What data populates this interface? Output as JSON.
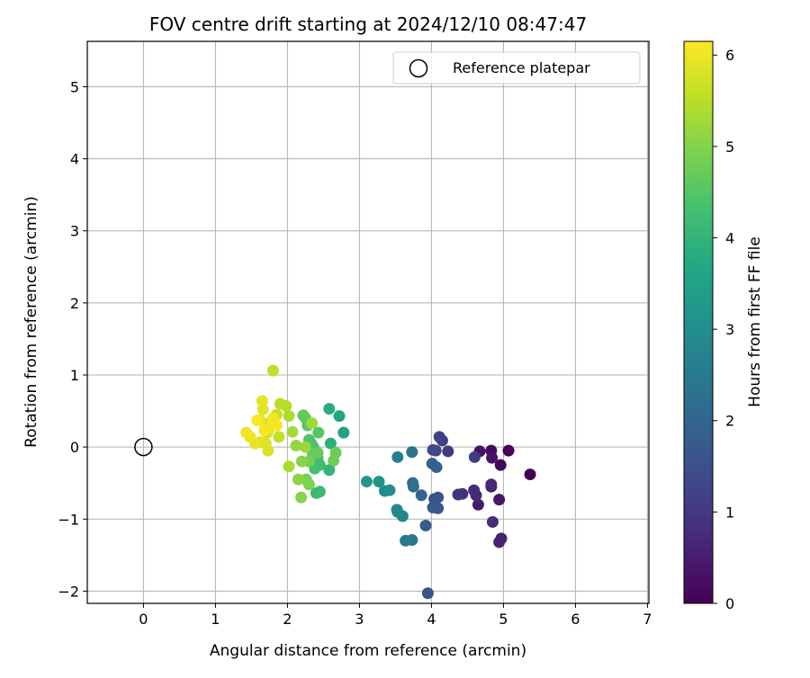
{
  "chart_data": {
    "type": "scatter",
    "title": "FOV centre drift starting at 2024/12/10 08:47:47",
    "xlabel": "Angular distance from reference (arcmin)",
    "ylabel": "Rotation from reference (arcmin)",
    "xlim": [
      -0.78,
      7.02
    ],
    "ylim": [
      -2.17,
      5.63
    ],
    "xticks": [
      0,
      1,
      2,
      3,
      4,
      5,
      6,
      7
    ],
    "yticks": [
      -2,
      -1,
      0,
      1,
      2,
      3,
      4,
      5
    ],
    "grid": true,
    "legend": {
      "placement": "top-right",
      "entries": [
        "Reference platepar"
      ]
    },
    "reference_point": {
      "x": 0,
      "y": 0
    },
    "colorbar": {
      "label": "Hours from first FF file",
      "range": [
        0,
        6.15
      ],
      "ticks": [
        0,
        1,
        2,
        3,
        4,
        5,
        6
      ],
      "colormap": "viridis"
    },
    "points": [
      {
        "x": 5.37,
        "y": -0.38,
        "c": 0.0
      },
      {
        "x": 5.07,
        "y": -0.05,
        "c": 0.05
      },
      {
        "x": 4.96,
        "y": -0.25,
        "c": 0.1
      },
      {
        "x": 4.83,
        "y": -0.05,
        "c": 0.2
      },
      {
        "x": 4.67,
        "y": -0.06,
        "c": 0.3
      },
      {
        "x": 4.84,
        "y": -0.15,
        "c": 0.35
      },
      {
        "x": 4.94,
        "y": -0.73,
        "c": 0.4
      },
      {
        "x": 4.65,
        "y": -0.8,
        "c": 0.45
      },
      {
        "x": 4.83,
        "y": -0.55,
        "c": 0.5
      },
      {
        "x": 4.97,
        "y": -1.27,
        "c": 0.55
      },
      {
        "x": 4.94,
        "y": -1.32,
        "c": 0.6
      },
      {
        "x": 4.83,
        "y": -0.52,
        "c": 0.65
      },
      {
        "x": 4.62,
        "y": -0.67,
        "c": 0.7
      },
      {
        "x": 4.59,
        "y": -0.6,
        "c": 0.75
      },
      {
        "x": 4.85,
        "y": -1.04,
        "c": 0.8
      },
      {
        "x": 4.43,
        "y": -0.65,
        "c": 0.85
      },
      {
        "x": 4.37,
        "y": -0.66,
        "c": 0.9
      },
      {
        "x": 4.23,
        "y": -0.06,
        "c": 1.0
      },
      {
        "x": 4.6,
        "y": -0.14,
        "c": 1.05
      },
      {
        "x": 4.15,
        "y": 0.09,
        "c": 1.1
      },
      {
        "x": 4.11,
        "y": 0.14,
        "c": 1.2
      },
      {
        "x": 4.06,
        "y": -0.05,
        "c": 1.3
      },
      {
        "x": 4.02,
        "y": -0.04,
        "c": 1.4
      },
      {
        "x": 4.04,
        "y": -0.72,
        "c": 1.5
      },
      {
        "x": 3.95,
        "y": -2.03,
        "c": 1.55
      },
      {
        "x": 4.09,
        "y": -0.7,
        "c": 1.6
      },
      {
        "x": 4.09,
        "y": -0.85,
        "c": 1.65
      },
      {
        "x": 4.02,
        "y": -0.84,
        "c": 1.7
      },
      {
        "x": 3.92,
        "y": -1.09,
        "c": 1.75
      },
      {
        "x": 4.07,
        "y": -0.28,
        "c": 1.85
      },
      {
        "x": 4.01,
        "y": -0.23,
        "c": 1.9
      },
      {
        "x": 3.86,
        "y": -0.67,
        "c": 2.0
      },
      {
        "x": 3.74,
        "y": -0.5,
        "c": 2.15
      },
      {
        "x": 3.75,
        "y": -0.55,
        "c": 2.25
      },
      {
        "x": 3.73,
        "y": -0.07,
        "c": 2.35
      },
      {
        "x": 3.73,
        "y": -1.29,
        "c": 2.4
      },
      {
        "x": 3.64,
        "y": -1.3,
        "c": 2.5
      },
      {
        "x": 3.53,
        "y": -0.14,
        "c": 2.6
      },
      {
        "x": 3.6,
        "y": -0.96,
        "c": 2.7
      },
      {
        "x": 3.52,
        "y": -0.87,
        "c": 2.75
      },
      {
        "x": 3.53,
        "y": -0.9,
        "c": 2.8
      },
      {
        "x": 3.42,
        "y": -0.6,
        "c": 2.9
      },
      {
        "x": 3.35,
        "y": -0.61,
        "c": 3.0
      },
      {
        "x": 3.27,
        "y": -0.48,
        "c": 3.15
      },
      {
        "x": 3.1,
        "y": -0.48,
        "c": 3.25
      },
      {
        "x": 2.78,
        "y": 0.2,
        "c": 3.5
      },
      {
        "x": 2.72,
        "y": 0.43,
        "c": 3.6
      },
      {
        "x": 2.58,
        "y": 0.53,
        "c": 3.8
      },
      {
        "x": 2.6,
        "y": 0.05,
        "c": 3.9
      },
      {
        "x": 2.58,
        "y": -0.32,
        "c": 4.0
      },
      {
        "x": 2.45,
        "y": -0.62,
        "c": 4.1
      },
      {
        "x": 2.4,
        "y": -0.64,
        "c": 4.15
      },
      {
        "x": 2.42,
        "y": -0.15,
        "c": 4.2
      },
      {
        "x": 2.45,
        "y": -0.25,
        "c": 4.25
      },
      {
        "x": 2.38,
        "y": -0.3,
        "c": 4.3
      },
      {
        "x": 2.36,
        "y": 0.0,
        "c": 4.35
      },
      {
        "x": 2.33,
        "y": 0.05,
        "c": 4.4
      },
      {
        "x": 2.3,
        "y": 0.1,
        "c": 4.45
      },
      {
        "x": 2.43,
        "y": 0.2,
        "c": 4.5
      },
      {
        "x": 2.28,
        "y": 0.3,
        "c": 4.55
      },
      {
        "x": 2.25,
        "y": 0.4,
        "c": 4.6
      },
      {
        "x": 2.22,
        "y": 0.44,
        "c": 4.65
      },
      {
        "x": 2.35,
        "y": -0.1,
        "c": 4.7
      },
      {
        "x": 2.42,
        "y": -0.08,
        "c": 4.72
      },
      {
        "x": 2.67,
        "y": -0.08,
        "c": 4.75
      },
      {
        "x": 2.64,
        "y": -0.19,
        "c": 4.8
      },
      {
        "x": 2.3,
        "y": -0.2,
        "c": 4.85
      },
      {
        "x": 2.26,
        "y": -0.45,
        "c": 4.9
      },
      {
        "x": 2.3,
        "y": -0.52,
        "c": 4.95
      },
      {
        "x": 2.19,
        "y": -0.7,
        "c": 5.0
      },
      {
        "x": 2.2,
        "y": -0.2,
        "c": 5.05
      },
      {
        "x": 2.15,
        "y": -0.45,
        "c": 5.1
      },
      {
        "x": 2.12,
        "y": 0.02,
        "c": 5.15
      },
      {
        "x": 2.25,
        "y": 0.0,
        "c": 5.2
      },
      {
        "x": 2.34,
        "y": 0.33,
        "c": 5.25
      },
      {
        "x": 2.07,
        "y": 0.21,
        "c": 5.3
      },
      {
        "x": 2.02,
        "y": -0.27,
        "c": 5.35
      },
      {
        "x": 2.02,
        "y": 0.43,
        "c": 5.4
      },
      {
        "x": 1.98,
        "y": 0.57,
        "c": 5.45
      },
      {
        "x": 1.9,
        "y": 0.6,
        "c": 5.5
      },
      {
        "x": 1.8,
        "y": 1.06,
        "c": 5.55
      },
      {
        "x": 1.88,
        "y": 0.14,
        "c": 5.6
      },
      {
        "x": 1.85,
        "y": 0.45,
        "c": 5.65
      },
      {
        "x": 1.75,
        "y": 0.33,
        "c": 5.7
      },
      {
        "x": 1.72,
        "y": 0.2,
        "c": 5.75
      },
      {
        "x": 1.7,
        "y": 0.05,
        "c": 5.8
      },
      {
        "x": 1.73,
        "y": -0.05,
        "c": 5.82
      },
      {
        "x": 1.62,
        "y": 0.07,
        "c": 5.85
      },
      {
        "x": 1.66,
        "y": 0.52,
        "c": 5.88
      },
      {
        "x": 1.62,
        "y": 0.37,
        "c": 5.9
      },
      {
        "x": 1.65,
        "y": 0.64,
        "c": 5.93
      },
      {
        "x": 1.55,
        "y": 0.05,
        "c": 5.95
      },
      {
        "x": 1.48,
        "y": 0.14,
        "c": 5.98
      },
      {
        "x": 1.43,
        "y": 0.2,
        "c": 6.0
      },
      {
        "x": 1.76,
        "y": 0.27,
        "c": 6.02
      },
      {
        "x": 1.8,
        "y": 0.4,
        "c": 6.05
      },
      {
        "x": 1.85,
        "y": 0.3,
        "c": 6.08
      },
      {
        "x": 1.68,
        "y": 0.23,
        "c": 6.1
      },
      {
        "x": 1.58,
        "y": 0.37,
        "c": 6.12
      }
    ]
  }
}
